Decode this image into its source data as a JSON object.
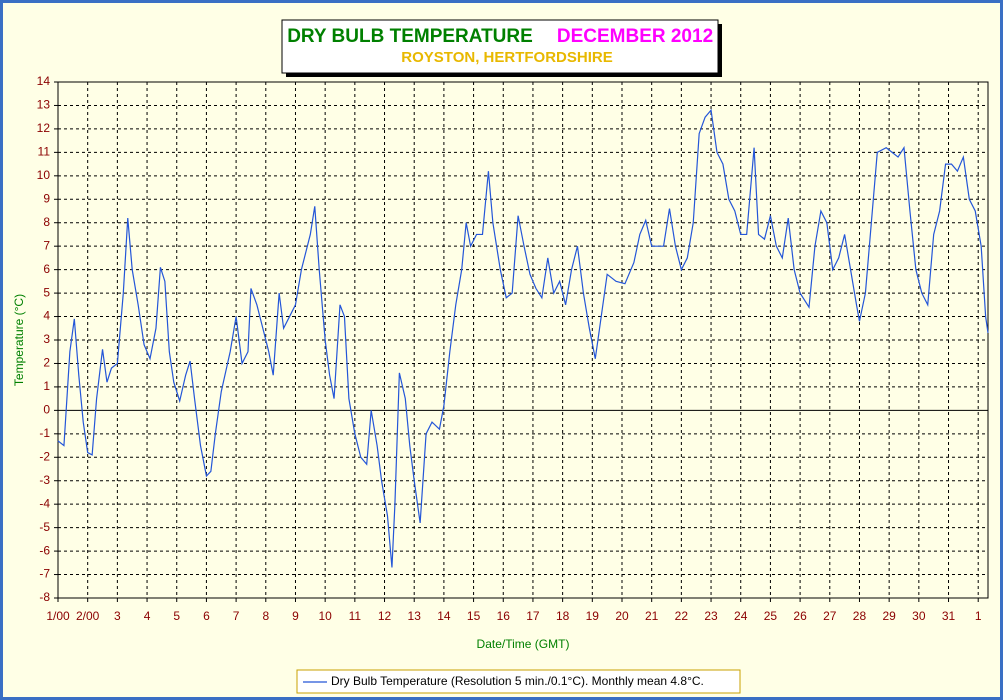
{
  "chart_data": {
    "type": "line",
    "title": "DRY BULB TEMPERATURE",
    "subtitle": "DECEMBER 2012",
    "location": "ROYSTON, HERTFORDSHIRE",
    "xlabel": "Date/Time (GMT)",
    "ylabel": "Temperature (°C)",
    "xlim": [
      1,
      32.33
    ],
    "ylim": [
      -8,
      14
    ],
    "yticks": [
      -8,
      -7,
      -6,
      -5,
      -4,
      -3,
      -2,
      -1,
      0,
      1,
      2,
      3,
      4,
      5,
      6,
      7,
      8,
      9,
      10,
      11,
      12,
      13,
      14
    ],
    "xticks": [
      {
        "value": 1,
        "label": "1/00"
      },
      {
        "value": 2,
        "label": "2/00"
      },
      3,
      4,
      5,
      6,
      7,
      8,
      9,
      10,
      11,
      12,
      13,
      14,
      15,
      16,
      17,
      18,
      19,
      20,
      21,
      22,
      23,
      24,
      25,
      26,
      27,
      28,
      29,
      30,
      31,
      {
        "value": 32,
        "label": "1"
      }
    ],
    "grid": true,
    "legend": "bottom",
    "series": [
      {
        "name": "Dry Bulb Temperature (Resolution 5 min./0.1°C). Monthly mean 4.8°C.",
        "color": "#2456d8",
        "x": [
          1.0,
          1.2,
          1.4,
          1.55,
          1.7,
          1.85,
          2.0,
          2.15,
          2.3,
          2.5,
          2.65,
          2.8,
          3.0,
          3.2,
          3.35,
          3.5,
          3.7,
          3.9,
          4.1,
          4.3,
          4.45,
          4.6,
          4.75,
          4.9,
          5.1,
          5.3,
          5.45,
          5.6,
          5.8,
          6.0,
          6.15,
          6.3,
          6.5,
          6.8,
          7.0,
          7.2,
          7.4,
          7.5,
          7.7,
          7.9,
          8.1,
          8.25,
          8.45,
          8.6,
          8.8,
          9.0,
          9.2,
          9.5,
          9.65,
          9.8,
          10.0,
          10.15,
          10.3,
          10.5,
          10.65,
          10.8,
          11.0,
          11.2,
          11.4,
          11.55,
          11.75,
          11.9,
          12.1,
          12.25,
          12.35,
          12.5,
          12.7,
          12.85,
          13.0,
          13.2,
          13.4,
          13.6,
          13.85,
          14.0,
          14.2,
          14.4,
          14.6,
          14.75,
          14.9,
          15.1,
          15.3,
          15.5,
          15.65,
          15.9,
          16.1,
          16.3,
          16.5,
          16.7,
          16.9,
          17.1,
          17.3,
          17.5,
          17.7,
          17.9,
          18.1,
          18.3,
          18.5,
          18.7,
          18.9,
          19.1,
          19.3,
          19.5,
          19.8,
          20.1,
          20.4,
          20.6,
          20.8,
          21.0,
          21.2,
          21.4,
          21.6,
          21.8,
          22.0,
          22.2,
          22.4,
          22.6,
          22.8,
          23.0,
          23.2,
          23.4,
          23.6,
          23.8,
          24.0,
          24.2,
          24.45,
          24.6,
          24.8,
          25.0,
          25.2,
          25.4,
          25.6,
          25.8,
          26.0,
          26.3,
          26.5,
          26.7,
          26.9,
          27.1,
          27.3,
          27.5,
          27.7,
          27.9,
          28.0,
          28.2,
          28.4,
          28.6,
          28.9,
          29.1,
          29.3,
          29.5,
          29.7,
          29.9,
          30.1,
          30.3,
          30.5,
          30.7,
          30.9,
          31.1,
          31.3,
          31.5,
          31.7,
          31.9,
          32.1,
          32.25,
          32.33
        ],
        "values": [
          -1.3,
          -1.5,
          2.5,
          3.9,
          1.5,
          -0.5,
          -1.8,
          -1.9,
          0.5,
          2.6,
          1.2,
          1.8,
          2.0,
          5.0,
          8.2,
          6.0,
          4.5,
          2.8,
          2.2,
          3.5,
          6.1,
          5.5,
          2.5,
          1.2,
          0.4,
          1.5,
          2.1,
          0.5,
          -1.5,
          -2.8,
          -2.6,
          -1.0,
          0.8,
          2.5,
          4.0,
          2.0,
          2.5,
          5.2,
          4.5,
          3.5,
          2.5,
          1.5,
          5.0,
          3.5,
          4.0,
          4.5,
          6.0,
          7.5,
          8.7,
          6.0,
          3.0,
          1.5,
          0.5,
          4.5,
          4.0,
          0.5,
          -1.0,
          -2.0,
          -2.3,
          0.0,
          -1.5,
          -3.0,
          -4.5,
          -6.7,
          -4.0,
          1.6,
          0.5,
          -1.5,
          -3.0,
          -4.8,
          -1.0,
          -0.5,
          -0.8,
          0.2,
          2.5,
          4.5,
          6.0,
          8.0,
          7.0,
          7.5,
          7.5,
          10.2,
          8.0,
          6.0,
          4.8,
          5.0,
          8.3,
          7.0,
          5.8,
          5.2,
          4.8,
          6.5,
          5.0,
          5.5,
          4.5,
          6.0,
          7.0,
          5.0,
          3.5,
          2.2,
          4.0,
          5.8,
          5.5,
          5.4,
          6.3,
          7.5,
          8.1,
          7.0,
          7.0,
          7.0,
          8.6,
          7.0,
          6.0,
          6.5,
          8.0,
          11.8,
          12.5,
          12.8,
          11.0,
          10.5,
          9.0,
          8.5,
          7.5,
          7.5,
          11.2,
          7.5,
          7.3,
          8.3,
          7.0,
          6.5,
          8.2,
          6.0,
          5.0,
          4.4,
          7.0,
          8.5,
          8.0,
          6.0,
          6.5,
          7.5,
          6.0,
          4.5,
          3.8,
          5.0,
          8.0,
          11.0,
          11.2,
          11.0,
          10.8,
          11.2,
          8.5,
          6.0,
          5.0,
          4.5,
          7.5,
          8.5,
          10.5,
          10.5,
          10.2,
          10.8,
          9.0,
          8.5,
          7.0,
          4.0,
          3.3
        ]
      }
    ]
  }
}
